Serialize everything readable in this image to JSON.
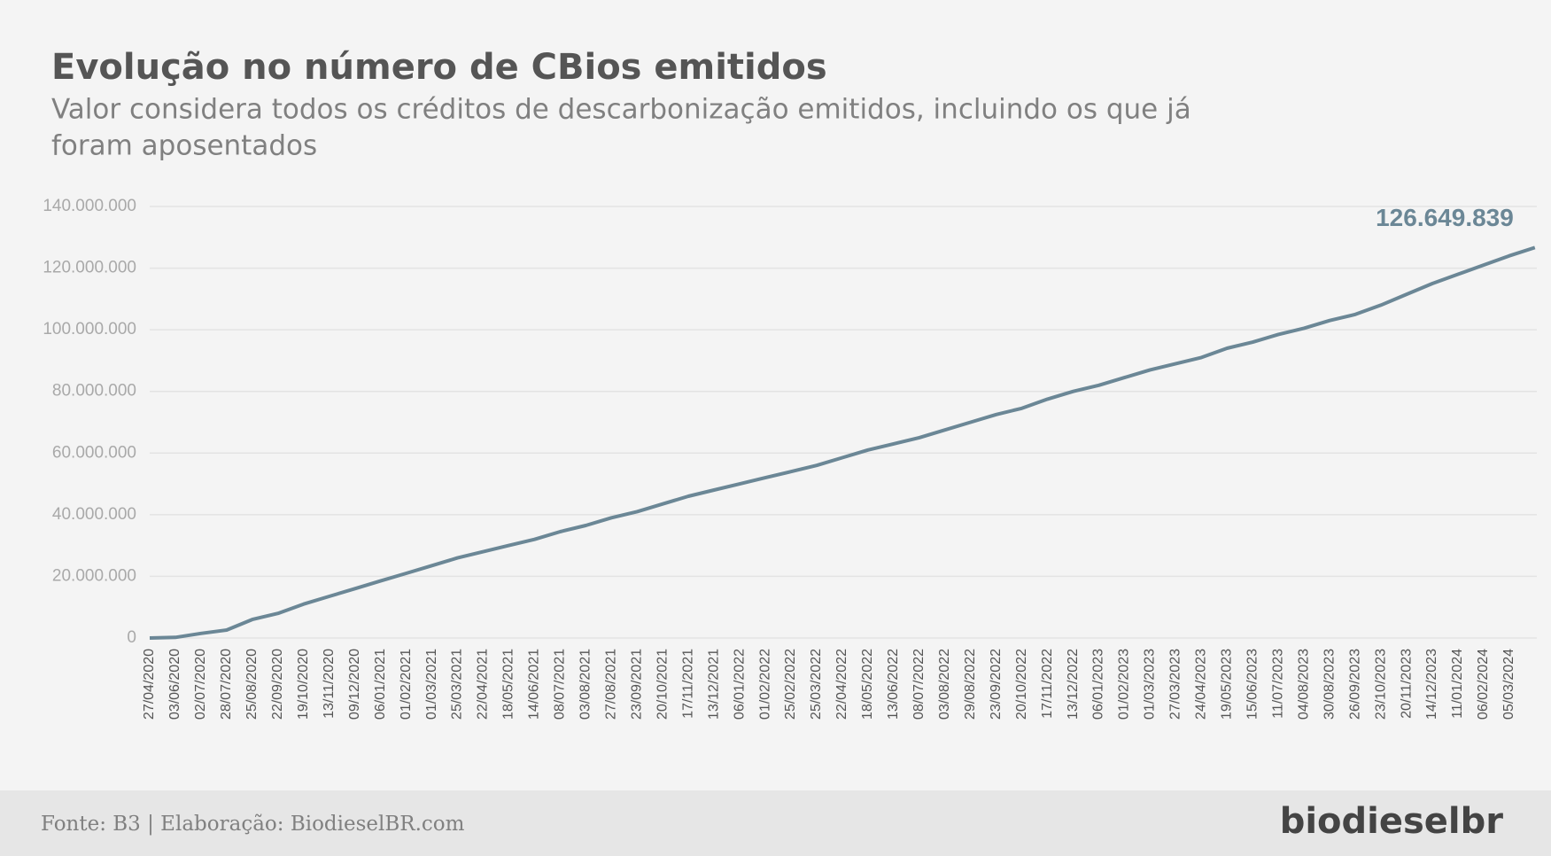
{
  "chart_data": {
    "type": "line",
    "title": "Evolução no número de CBios emitidos",
    "subtitle": [
      "Valor considera todos os créditos de descarbonização emitidos, incluindo os que já",
      "foram aposentados"
    ],
    "source": "Fonte: B3 | Elaboração: BiodieselBR.com",
    "logo": "biodieselbr",
    "categories": [
      "27/04/2020",
      "03/06/2020",
      "02/07/2020",
      "28/07/2020",
      "25/08/2020",
      "22/09/2020",
      "19/10/2020",
      "13/11/2020",
      "09/12/2020",
      "06/01/2021",
      "01/02/2021",
      "01/03/2021",
      "25/03/2021",
      "22/04/2021",
      "18/05/2021",
      "14/06/2021",
      "08/07/2021",
      "03/08/2021",
      "27/08/2021",
      "23/09/2021",
      "20/10/2021",
      "17/11/2021",
      "13/12/2021",
      "06/01/2022",
      "01/02/2022",
      "25/02/2022",
      "25/03/2022",
      "22/04/2022",
      "18/05/2022",
      "13/06/2022",
      "08/07/2022",
      "03/08/2022",
      "29/08/2022",
      "23/09/2022",
      "20/10/2022",
      "17/11/2022",
      "13/12/2022",
      "06/01/2023",
      "01/02/2023",
      "01/03/2023",
      "27/03/2023",
      "24/04/2023",
      "19/05/2023",
      "15/06/2023",
      "11/07/2023",
      "04/08/2023",
      "30/08/2023",
      "26/09/2023",
      "23/10/2023",
      "20/11/2023",
      "14/12/2023",
      "11/01/2024",
      "06/02/2024",
      "05/03/2024",
      null
    ],
    "values": [
      0,
      200000,
      1500000,
      2600000,
      6000000,
      8000000,
      11000000,
      13500000,
      16000000,
      18500000,
      21000000,
      23500000,
      26000000,
      28000000,
      30000000,
      32000000,
      34500000,
      36500000,
      39000000,
      41000000,
      43500000,
      46000000,
      48000000,
      50000000,
      52000000,
      54000000,
      56000000,
      58500000,
      61000000,
      63000000,
      65000000,
      67500000,
      70000000,
      72500000,
      74500000,
      77500000,
      80000000,
      82000000,
      84500000,
      87000000,
      89000000,
      91000000,
      94000000,
      96000000,
      98500000,
      100500000,
      103000000,
      105000000,
      108000000,
      111500000,
      115000000,
      118000000,
      121000000,
      124000000,
      126649839
    ],
    "value_labels": [
      null,
      null,
      null,
      null,
      null,
      null,
      null,
      null,
      null,
      null,
      null,
      null,
      null,
      null,
      null,
      null,
      null,
      null,
      null,
      null,
      null,
      null,
      null,
      null,
      null,
      null,
      null,
      null,
      null,
      null,
      null,
      null,
      null,
      null,
      null,
      null,
      null,
      null,
      null,
      null,
      null,
      null,
      null,
      null,
      null,
      null,
      null,
      null,
      null,
      null,
      null,
      null,
      null,
      null,
      "126.649.839"
    ],
    "color": "#6b8796",
    "ylim": [
      0,
      140000000
    ],
    "yticks": [
      0,
      {
        "value": 20000000,
        "label": "20.000.000"
      },
      {
        "value": 40000000,
        "label": "40.000.000"
      },
      {
        "value": 60000000,
        "label": "60.000.000"
      },
      {
        "value": 80000000,
        "label": "80.000.000"
      },
      {
        "value": 100000000,
        "label": "100.000.000"
      },
      {
        "value": 120000000,
        "label": "120.000.000"
      },
      {
        "value": 140000000,
        "label": "140.000.000"
      }
    ],
    "grid": true
  }
}
